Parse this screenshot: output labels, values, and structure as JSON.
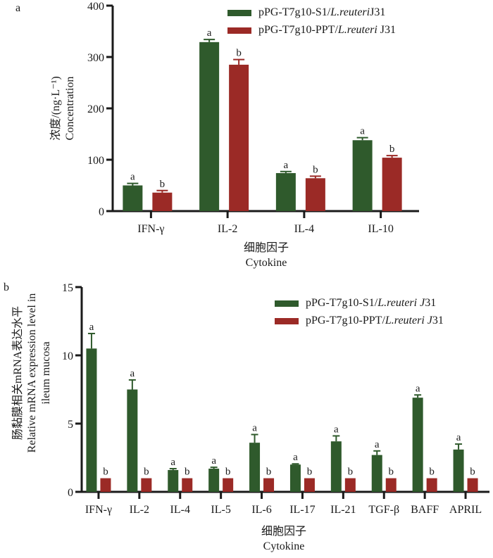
{
  "colors": {
    "series1": "#2f5a2c",
    "series2": "#9b2a26",
    "axis": "#1a1a1a"
  },
  "chart_data": [
    {
      "panel": "a",
      "type": "bar",
      "title": "",
      "xlabel_cn": "细胞因子",
      "xlabel": "Cytokine",
      "ylabel_cn": "浓度/(ng·L⁻¹)",
      "ylabel": "Concentration",
      "ylim": [
        0,
        400
      ],
      "yticks": [
        0,
        100,
        200,
        300,
        400
      ],
      "grid": false,
      "legend_position": "top-right",
      "categories": [
        "IFN-γ",
        "IL-2",
        "IL-4",
        "IL-10"
      ],
      "series": [
        {
          "name_prefix": "pPG-T7g10-S1/",
          "name_italic": "L.reuteri",
          "name_suffix": "J31",
          "values": [
            50,
            329,
            74,
            138
          ],
          "errors": [
            4,
            5,
            3,
            5
          ],
          "labels": [
            "a",
            "a",
            "a",
            "a"
          ]
        },
        {
          "name_prefix": "pPG-T7g10-PPT/",
          "name_italic": "L.reuteri ",
          "name_suffix": "J31",
          "values": [
            36,
            285,
            64,
            104
          ],
          "errors": [
            4,
            10,
            4,
            4
          ],
          "labels": [
            "b",
            "b",
            "b",
            "b"
          ]
        }
      ]
    },
    {
      "panel": "b",
      "type": "bar",
      "title": "",
      "xlabel_cn": "细胞因子",
      "xlabel": "Cytokine",
      "ylabel_cn": "肠黏膜相关mRNA表达水平",
      "ylabel": "Relative mRNA expression level in",
      "ylabel2": "ileum mucosa",
      "ylim": [
        0,
        15
      ],
      "yticks": [
        0,
        5,
        10,
        15
      ],
      "grid": false,
      "legend_position": "top-right",
      "categories": [
        "IFN-γ",
        "IL-2",
        "IL-4",
        "IL-5",
        "IL-6",
        "IL-17",
        "IL-21",
        "TGF-β",
        "BAFF",
        "APRIL"
      ],
      "series": [
        {
          "name_prefix": "pPG-T7g10-S1/",
          "name_italic": "L.reuteri J",
          "name_suffix": "31",
          "values": [
            10.5,
            7.5,
            1.6,
            1.7,
            3.6,
            2.0,
            3.7,
            2.7,
            6.9,
            3.1
          ],
          "errors": [
            1.1,
            0.7,
            0.1,
            0.1,
            0.6,
            0.05,
            0.4,
            0.3,
            0.2,
            0.4
          ],
          "labels": [
            "a",
            "a",
            "a",
            "a",
            "a",
            "a",
            "a",
            "a",
            "a",
            "a"
          ]
        },
        {
          "name_prefix": "pPG-T7g10-PPT/",
          "name_italic": "L.reuteri J",
          "name_suffix": "31",
          "values": [
            1,
            1,
            1,
            1,
            1,
            1,
            1,
            1,
            1,
            1
          ],
          "errors": [
            0,
            0,
            0,
            0,
            0,
            0,
            0,
            0,
            0,
            0
          ],
          "labels": [
            "b",
            "b",
            "b",
            "b",
            "b",
            "b",
            "b",
            "b",
            "b",
            "b"
          ]
        }
      ]
    }
  ]
}
